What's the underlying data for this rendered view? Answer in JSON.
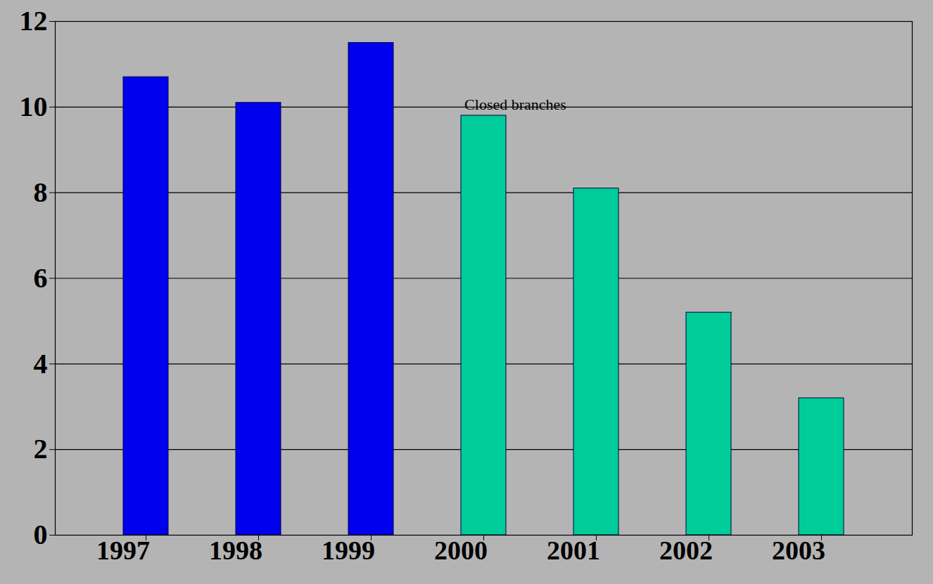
{
  "chart_data": {
    "type": "bar",
    "annotations": [
      "Closed branches"
    ],
    "categories": [
      "1997",
      "1998",
      "1999",
      "2000",
      "2001",
      "2002",
      "2003"
    ],
    "values": [
      10.7,
      10.1,
      11.5,
      9.8,
      8.1,
      5.2,
      3.2
    ],
    "colors": [
      "#0000ee",
      "#0000ee",
      "#0000ee",
      "#00cc99",
      "#00cc99",
      "#00cc99",
      "#00cc99"
    ],
    "ylim": [
      0,
      12
    ],
    "yticks": [
      0,
      2,
      4,
      6,
      8,
      10,
      12
    ],
    "grid": true
  }
}
